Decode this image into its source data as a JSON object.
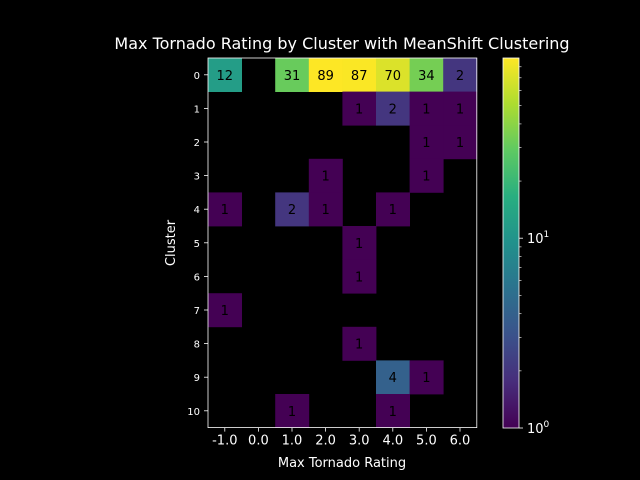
{
  "chart_data": {
    "type": "heatmap",
    "title": "Max Tornado Rating by Cluster with MeanShift Clustering",
    "xlabel": "Max Tornado Rating",
    "ylabel": "Cluster",
    "x_categories": [
      "-1.0",
      "0.0",
      "1.0",
      "2.0",
      "3.0",
      "4.0",
      "5.0",
      "6.0"
    ],
    "y_categories": [
      "0",
      "1",
      "2",
      "3",
      "4",
      "5",
      "6",
      "7",
      "8",
      "9",
      "10"
    ],
    "values": [
      [
        12,
        null,
        31,
        89,
        87,
        70,
        34,
        2
      ],
      [
        null,
        null,
        null,
        null,
        1,
        2,
        1,
        1
      ],
      [
        null,
        null,
        null,
        null,
        null,
        null,
        1,
        1
      ],
      [
        null,
        null,
        null,
        1,
        null,
        null,
        1,
        null
      ],
      [
        1,
        null,
        2,
        1,
        null,
        1,
        null,
        null
      ],
      [
        null,
        null,
        null,
        null,
        1,
        null,
        null,
        null
      ],
      [
        null,
        null,
        null,
        null,
        1,
        null,
        null,
        null
      ],
      [
        1,
        null,
        null,
        null,
        null,
        null,
        null,
        null
      ],
      [
        null,
        null,
        null,
        null,
        1,
        null,
        null,
        null
      ],
      [
        null,
        null,
        null,
        null,
        null,
        4,
        1,
        null
      ],
      [
        null,
        null,
        1,
        null,
        null,
        1,
        null,
        null
      ]
    ],
    "color_scale": "log",
    "colormap": "viridis",
    "vmin": 1,
    "vmax": 89,
    "colorbar_ticks": [
      {
        "value": 1,
        "base": "10",
        "exp": "0"
      },
      {
        "value": 10,
        "base": "10",
        "exp": "1"
      }
    ],
    "background_color": "#000000",
    "text_color": "#ffffff"
  }
}
